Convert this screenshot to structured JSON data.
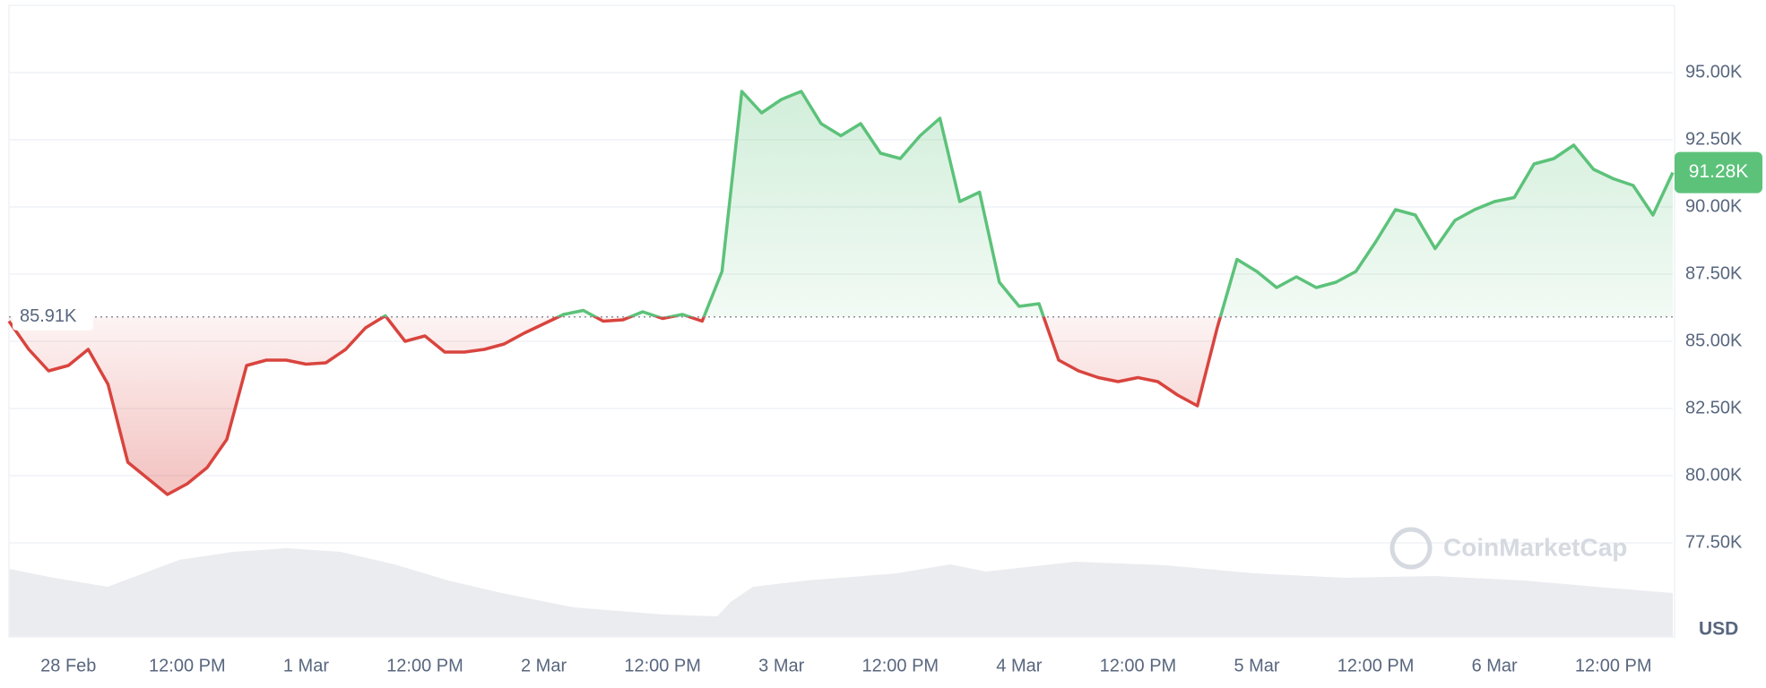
{
  "chart_data": {
    "type": "line",
    "categories": [
      null,
      null,
      null,
      "28 Feb",
      null,
      null,
      null,
      null,
      null,
      "12:00 PM",
      null,
      null,
      null,
      null,
      null,
      "1 Mar",
      null,
      null,
      null,
      null,
      null,
      "12:00 PM",
      null,
      null,
      null,
      null,
      null,
      "2 Mar",
      null,
      null,
      null,
      null,
      null,
      "12:00 PM",
      null,
      null,
      null,
      null,
      null,
      "3 Mar",
      null,
      null,
      null,
      null,
      null,
      "12:00 PM",
      null,
      null,
      null,
      null,
      null,
      "4 Mar",
      null,
      null,
      null,
      null,
      null,
      "12:00 PM",
      null,
      null,
      null,
      null,
      null,
      "5 Mar",
      null,
      null,
      null,
      null,
      null,
      "12:00 PM",
      null,
      null,
      null,
      null,
      null,
      "6 Mar",
      null,
      null,
      null,
      null,
      null,
      "12:00 PM",
      null,
      null,
      null
    ],
    "series": [
      {
        "values": [
          85750,
          84700,
          83900,
          84100,
          84700,
          83400,
          80500,
          79900,
          79300,
          79700,
          80300,
          81350,
          84100,
          84300,
          84300,
          84150,
          84200,
          84700,
          85500,
          85950,
          85000,
          85200,
          84600,
          84600,
          84700,
          84900,
          85300,
          85650,
          86000,
          86150,
          85750,
          85800,
          86100,
          85850,
          86000,
          85750,
          87600,
          94300,
          93500,
          94000,
          94300,
          93100,
          92650,
          93100,
          92000,
          91800,
          92650,
          93300,
          90200,
          90550,
          87200,
          86300,
          86400,
          84300,
          83900,
          83650,
          83500,
          83650,
          83500,
          83000,
          82600,
          85500,
          88050,
          87600,
          87000,
          87400,
          87000,
          87200,
          87600,
          88700,
          89900,
          89700,
          88450,
          89500,
          89900,
          90200,
          90350,
          91600,
          91800,
          92300,
          91400,
          91050,
          90800,
          89700,
          91280
        ]
      }
    ],
    "ylim": [
      74000,
      97500
    ],
    "yticks": [
      {
        "value": 77500,
        "label": "77.50K"
      },
      {
        "value": 80000,
        "label": "80.00K"
      },
      {
        "value": 82500,
        "label": "82.50K"
      },
      {
        "value": 85000,
        "label": "85.00K"
      },
      {
        "value": 87500,
        "label": "87.50K"
      },
      {
        "value": 90000,
        "label": "90.00K"
      },
      {
        "value": 92500,
        "label": "92.50K"
      },
      {
        "value": 95000,
        "label": "95.00K"
      }
    ],
    "grid": true,
    "baseline": {
      "value": 85910,
      "label": "85.91K"
    },
    "current": {
      "value": 91280,
      "label": "91.28K"
    },
    "up_color": "#5cc27a",
    "down_color": "#d9443e",
    "y_axis_label": "USD",
    "watermark": "CoinMarketCap"
  }
}
